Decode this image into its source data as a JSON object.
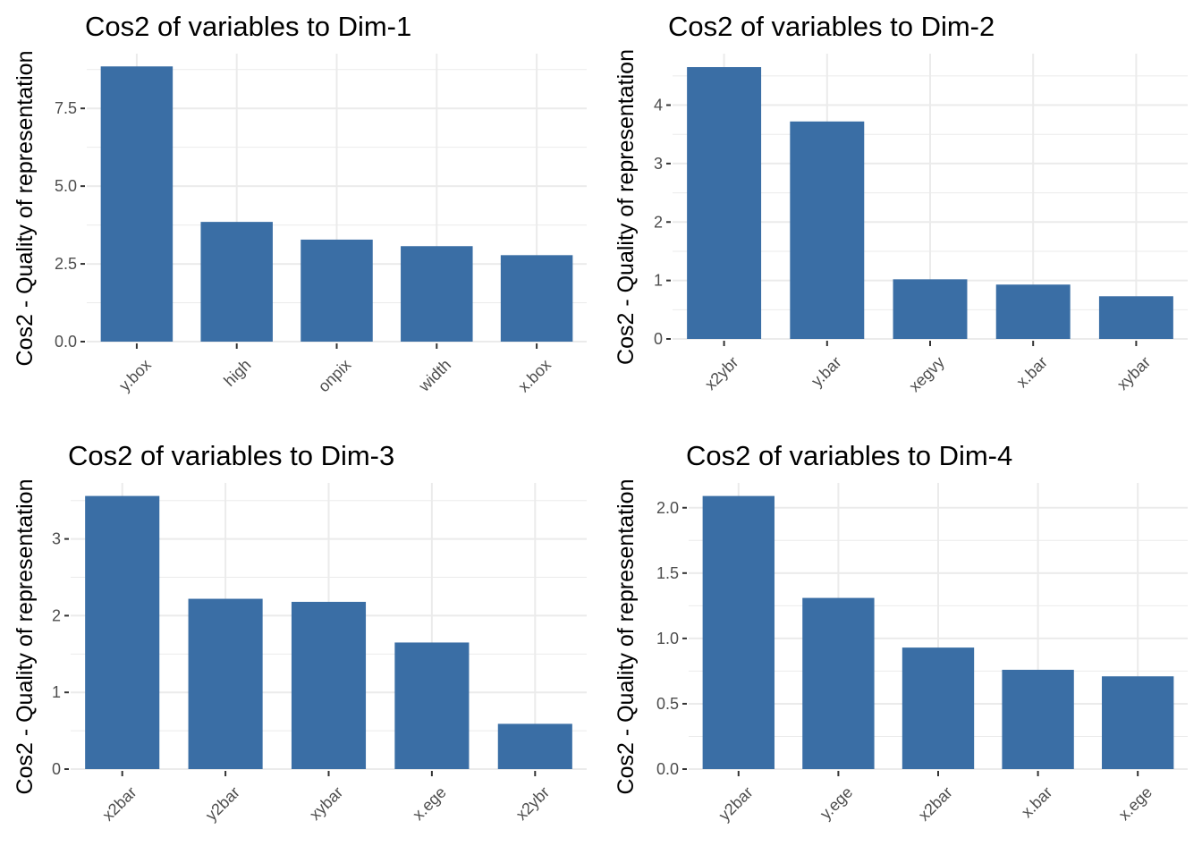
{
  "bar_color": "#3a6ea5",
  "grid_color": "#ebebeb",
  "chart_data": [
    {
      "type": "bar",
      "title": "Cos2 of variables to Dim-1",
      "xlabel": "",
      "ylabel": "Cos2 - Quality of representation",
      "categories": [
        "y.box",
        "high",
        "onpix",
        "width",
        "x.box"
      ],
      "values": [
        8.85,
        3.85,
        3.28,
        3.07,
        2.78
      ],
      "ylim": [
        0,
        9.26
      ],
      "yticks": [
        0,
        2.5,
        5,
        7.5
      ],
      "ytick_labels": [
        "0.0",
        "2.5",
        "5.0",
        "7.5"
      ],
      "grid": true
    },
    {
      "type": "bar",
      "title": "Cos2 of variables to Dim-2",
      "xlabel": "",
      "ylabel": "Cos2 - Quality of representation",
      "categories": [
        "x2ybr",
        "y.bar",
        "xegvy",
        "x.bar",
        "xybar"
      ],
      "values": [
        4.65,
        3.72,
        1.02,
        0.93,
        0.73
      ],
      "ylim": [
        0,
        4.88
      ],
      "yticks": [
        0,
        1,
        2,
        3,
        4
      ],
      "ytick_labels": [
        "0",
        "1",
        "2",
        "3",
        "4"
      ],
      "grid": true
    },
    {
      "type": "bar",
      "title": "Cos2 of variables to Dim-3",
      "xlabel": "",
      "ylabel": "Cos2 - Quality of representation",
      "categories": [
        "x2bar",
        "y2bar",
        "xybar",
        "x.ege",
        "x2ybr"
      ],
      "values": [
        3.56,
        2.22,
        2.18,
        1.65,
        0.59
      ],
      "ylim": [
        0,
        3.73
      ],
      "yticks": [
        0,
        1,
        2,
        3
      ],
      "ytick_labels": [
        "0",
        "1",
        "2",
        "3"
      ],
      "grid": true
    },
    {
      "type": "bar",
      "title": "Cos2 of variables to Dim-4",
      "xlabel": "",
      "ylabel": "Cos2 - Quality of representation",
      "categories": [
        "y2bar",
        "y.ege",
        "x2bar",
        "x.bar",
        "x.ege"
      ],
      "values": [
        2.09,
        1.31,
        0.93,
        0.76,
        0.71
      ],
      "ylim": [
        0,
        2.19
      ],
      "yticks": [
        0,
        0.5,
        1,
        1.5,
        2
      ],
      "ytick_labels": [
        "0.0",
        "0.5",
        "1.0",
        "1.5",
        "2.0"
      ],
      "grid": true
    }
  ]
}
